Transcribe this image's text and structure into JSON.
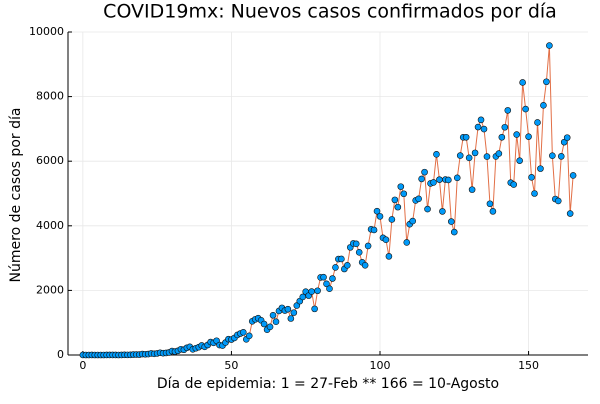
{
  "chart_data": {
    "type": "scatter-line",
    "title": "COVID19mx: Nuevos casos confirmados por día",
    "x_label": "Día de epidemia: 1 = 27-Feb ** 166 = 10-Agosto",
    "y_label": "Número de casos por día",
    "x": [
      0,
      1,
      2,
      3,
      4,
      5,
      6,
      7,
      8,
      9,
      10,
      11,
      12,
      13,
      14,
      15,
      16,
      17,
      18,
      19,
      20,
      21,
      22,
      23,
      24,
      25,
      26,
      27,
      28,
      29,
      30,
      31,
      32,
      33,
      34,
      35,
      36,
      37,
      38,
      39,
      40,
      41,
      42,
      43,
      44,
      45,
      46,
      47,
      48,
      49,
      50,
      51,
      52,
      53,
      54,
      55,
      56,
      57,
      58,
      59,
      60,
      61,
      62,
      63,
      64,
      65,
      66,
      67,
      68,
      69,
      70,
      71,
      72,
      73,
      74,
      75,
      76,
      77,
      78,
      79,
      80,
      81,
      82,
      83,
      84,
      85,
      86,
      87,
      88,
      89,
      90,
      91,
      92,
      93,
      94,
      95,
      96,
      97,
      98,
      99,
      100,
      101,
      102,
      103,
      104,
      105,
      106,
      107,
      108,
      109,
      110,
      111,
      112,
      113,
      114,
      115,
      116,
      117,
      118,
      119,
      120,
      121,
      122,
      123,
      124,
      125,
      126,
      127,
      128,
      129,
      130,
      131,
      132,
      133,
      134,
      135,
      136,
      137,
      138,
      139,
      140,
      141,
      142,
      143,
      144,
      145,
      146,
      147,
      148,
      149,
      150,
      151,
      152,
      153,
      154,
      155,
      156,
      157,
      158,
      159,
      160,
      161,
      162,
      163,
      164,
      165
    ],
    "series": [
      {
        "line_color": "#e26f46",
        "color": "#009af9",
        "values": [
          1,
          0,
          0,
          1,
          0,
          0,
          0,
          0,
          1,
          2,
          2,
          1,
          0,
          2,
          5,
          4,
          6,
          12,
          14,
          12,
          29,
          23,
          29,
          48,
          37,
          48,
          70,
          55,
          65,
          78,
          121,
          105,
          131,
          178,
          163,
          224,
          253,
          176,
          209,
          242,
          296,
          254,
          310,
          402,
          377,
          441,
          307,
          292,
          384,
          491,
          479,
          528,
          621,
          665,
          703,
          485,
          594,
          1043,
          1103,
          1140,
          1073,
          960,
          784,
          872,
          1230,
          1032,
          1364,
          1459,
          1375,
          1419,
          1130,
          1312,
          1531,
          1668,
          1798,
          1961,
          1838,
          1965,
          1428,
          1989,
          2402,
          2410,
          2203,
          2052,
          2368,
          2711,
          2970,
          2974,
          2663,
          2777,
          3332,
          3455,
          3443,
          3179,
          2869,
          2777,
          3377,
          3891,
          3871,
          4452,
          4292,
          3629,
          3569,
          3054,
          4196,
          4803,
          4578,
          5213,
          4992,
          3485,
          4050,
          4147,
          4786,
          4835,
          5452,
          5662,
          4517,
          5312,
          5343,
          6214,
          5429,
          4446,
          5432,
          5419,
          4130,
          3805,
          5485,
          6175,
          6740,
          6741,
          6104,
          5120,
          6258,
          7058,
          7280,
          6995,
          6143,
          4683,
          4447,
          6148,
          6236,
          6741,
          7051,
          7573,
          5335,
          5277,
          6825,
          6017,
          8438,
          7615,
          6760,
          5500,
          5000,
          7200,
          5770,
          7730,
          8460,
          9580,
          6170,
          4830,
          4770,
          6150,
          6590,
          6730,
          4380,
          5560
        ]
      }
    ],
    "xlim": [
      -5,
      170
    ],
    "xticks": [
      0,
      50,
      100,
      150
    ],
    "ylim": [
      0,
      10000
    ],
    "yticks": [
      0,
      2000,
      4000,
      6000,
      8000,
      10000
    ],
    "grid": true
  }
}
